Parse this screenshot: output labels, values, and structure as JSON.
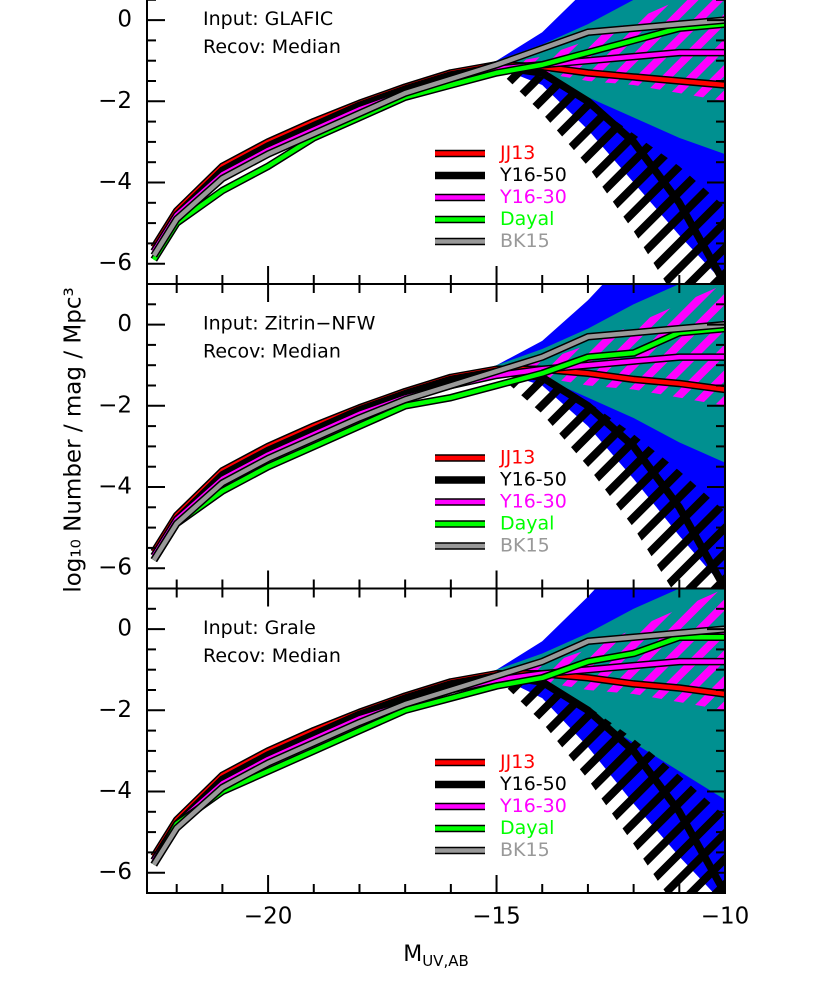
{
  "chart_data": [
    {
      "type": "line",
      "xlim": [
        -22.65,
        -10
      ],
      "ylim": [
        -6.5,
        1.0
      ],
      "xticks": [
        -20,
        -15,
        -10
      ],
      "show_xtick_labels": false,
      "yticks": [
        {
          "value": -6,
          "label": "−6"
        },
        {
          "value": -4,
          "label": "−4"
        },
        {
          "value": -2,
          "label": "−2"
        },
        0
      ],
      "annotations": [
        "Input: GLAFIC",
        "Recov: Median"
      ],
      "x": [
        -22.5,
        -22,
        -21,
        -20,
        -19,
        -18,
        -17,
        -16,
        -15,
        -14,
        -13,
        -12,
        -11,
        -10
      ],
      "bands": [
        {
          "color": "#0000ff",
          "x": [
            -16,
            -15,
            -14,
            -13,
            -12,
            -11,
            -10
          ],
          "lower": [
            -1.45,
            -1.15,
            -1.6,
            -2.7,
            -4.0,
            -5.3,
            -6.5
          ],
          "upper": [
            -1.35,
            -1.0,
            -0.3,
            0.8,
            2.0,
            3.0,
            4.0
          ]
        },
        {
          "color": "#009090",
          "x": [
            -16,
            -15,
            -14,
            -13,
            -12,
            -11,
            -10
          ],
          "lower": [
            -1.45,
            -1.15,
            -1.3,
            -1.9,
            -2.4,
            -2.9,
            -3.3
          ],
          "upper": [
            -1.35,
            -1.0,
            -0.6,
            -0.1,
            0.5,
            1.0,
            1.5
          ]
        }
      ],
      "hatches": [
        {
          "color": "#000000",
          "x": [
            -15,
            -14,
            -13,
            -12,
            -11,
            -10
          ],
          "lower": [
            -1.2,
            -2.3,
            -3.6,
            -5.2,
            -7.0,
            -8.0
          ],
          "upper": [
            -1.1,
            -1.4,
            -2.0,
            -2.8,
            -3.6,
            -4.6
          ]
        },
        {
          "color": "#ff00ff",
          "x": [
            -15,
            -14,
            -13,
            -12,
            -11,
            -10
          ],
          "lower": [
            -1.2,
            -1.3,
            -1.5,
            -1.6,
            -1.8,
            -2.0
          ],
          "upper": [
            -1.1,
            -0.9,
            -0.5,
            0.0,
            0.5,
            1.0
          ]
        }
      ],
      "series": [
        {
          "name": "JJ13",
          "color": "#ff0000",
          "values": [
            -5.6,
            -4.7,
            -3.6,
            -3.0,
            -2.5,
            -2.05,
            -1.65,
            -1.3,
            -1.1,
            -1.15,
            -1.3,
            -1.4,
            -1.5,
            -1.6
          ]
        },
        {
          "name": "Y16-50",
          "color": "#000000",
          "values": [
            -5.7,
            -4.8,
            -3.7,
            -3.1,
            -2.6,
            -2.1,
            -1.7,
            -1.35,
            -1.15,
            -1.3,
            -2.0,
            -3.0,
            -4.5,
            -6.5
          ]
        },
        {
          "name": "Y16-30",
          "color": "#ff00ff",
          "values": [
            -5.7,
            -4.8,
            -3.8,
            -3.2,
            -2.7,
            -2.2,
            -1.8,
            -1.45,
            -1.2,
            -1.1,
            -1.0,
            -0.9,
            -0.8,
            -0.8
          ]
        },
        {
          "name": "Dayal",
          "color": "#00ff00",
          "values": [
            -5.9,
            -5.0,
            -4.2,
            -3.6,
            -2.9,
            -2.4,
            -1.9,
            -1.6,
            -1.3,
            -1.1,
            -0.8,
            -0.5,
            -0.2,
            -0.1
          ]
        },
        {
          "name": "BK15",
          "color": "#999999",
          "values": [
            -5.8,
            -4.9,
            -3.9,
            -3.3,
            -2.8,
            -2.3,
            -1.8,
            -1.45,
            -1.1,
            -0.7,
            -0.3,
            -0.2,
            -0.1,
            0.0
          ]
        }
      ]
    },
    {
      "type": "line",
      "xlim": [
        -22.65,
        -10
      ],
      "ylim": [
        -6.5,
        1.0
      ],
      "xticks": [
        -20,
        -15,
        -10
      ],
      "show_xtick_labels": false,
      "yticks": [
        {
          "value": -6,
          "label": "−6"
        },
        {
          "value": -4,
          "label": "−4"
        },
        {
          "value": -2,
          "label": "−2"
        },
        0
      ],
      "ylabel": "log₁₀ Number / mag / Mpc³",
      "annotations": [
        "Input: Zitrin−NFW",
        "Recov: Median"
      ],
      "x": [
        -22.5,
        -22,
        -21,
        -20,
        -19,
        -18,
        -17,
        -16,
        -15,
        -14,
        -13,
        -12,
        -11,
        -10
      ],
      "bands": [
        {
          "color": "#0000ff",
          "x": [
            -16,
            -15,
            -14,
            -13,
            -12,
            -11,
            -10
          ],
          "lower": [
            -1.45,
            -1.15,
            -1.5,
            -2.5,
            -3.8,
            -5.2,
            -6.5
          ],
          "upper": [
            -1.35,
            -1.0,
            -0.4,
            0.6,
            1.8,
            3.0,
            4.0
          ]
        },
        {
          "color": "#009090",
          "x": [
            -16,
            -15,
            -14,
            -13,
            -12,
            -11,
            -10
          ],
          "lower": [
            -1.45,
            -1.15,
            -1.3,
            -1.8,
            -2.3,
            -2.9,
            -3.4
          ],
          "upper": [
            -1.35,
            -1.0,
            -0.6,
            -0.1,
            0.5,
            1.0,
            1.5
          ]
        }
      ],
      "hatches": [
        {
          "color": "#000000",
          "x": [
            -15,
            -14,
            -13,
            -12,
            -11,
            -10
          ],
          "lower": [
            -1.2,
            -2.2,
            -3.5,
            -5.0,
            -6.8,
            -8.0
          ],
          "upper": [
            -1.1,
            -1.4,
            -1.9,
            -2.7,
            -3.6,
            -4.6
          ]
        },
        {
          "color": "#ff00ff",
          "x": [
            -15,
            -14,
            -13,
            -12,
            -11,
            -10
          ],
          "lower": [
            -1.2,
            -1.3,
            -1.5,
            -1.6,
            -1.8,
            -2.0
          ],
          "upper": [
            -1.1,
            -0.9,
            -0.5,
            0.0,
            0.5,
            1.0
          ]
        }
      ],
      "series": [
        {
          "name": "JJ13",
          "color": "#ff0000",
          "values": [
            -5.6,
            -4.7,
            -3.6,
            -3.0,
            -2.5,
            -2.05,
            -1.65,
            -1.3,
            -1.1,
            -1.1,
            -1.2,
            -1.35,
            -1.45,
            -1.6
          ]
        },
        {
          "name": "Y16-50",
          "color": "#000000",
          "values": [
            -5.7,
            -4.8,
            -3.7,
            -3.1,
            -2.6,
            -2.1,
            -1.7,
            -1.35,
            -1.15,
            -1.3,
            -2.0,
            -3.0,
            -4.5,
            -6.5
          ]
        },
        {
          "name": "Y16-30",
          "color": "#ff00ff",
          "values": [
            -5.7,
            -4.8,
            -3.8,
            -3.2,
            -2.7,
            -2.2,
            -1.8,
            -1.5,
            -1.25,
            -1.1,
            -1.0,
            -0.9,
            -0.8,
            -0.8
          ]
        },
        {
          "name": "Dayal",
          "color": "#00ff00",
          "values": [
            -5.8,
            -4.9,
            -4.1,
            -3.5,
            -3.0,
            -2.5,
            -2.0,
            -1.8,
            -1.5,
            -1.2,
            -0.8,
            -0.7,
            -0.2,
            -0.1
          ]
        },
        {
          "name": "BK15",
          "color": "#999999",
          "values": [
            -5.8,
            -4.9,
            -3.9,
            -3.3,
            -2.8,
            -2.3,
            -1.85,
            -1.5,
            -1.15,
            -0.8,
            -0.3,
            -0.2,
            -0.1,
            0.0
          ]
        }
      ]
    },
    {
      "type": "line",
      "xlim": [
        -22.65,
        -10
      ],
      "ylim": [
        -6.5,
        1.0
      ],
      "xticks": [
        {
          "value": -20,
          "label": "−20"
        },
        {
          "value": -15,
          "label": "−15"
        },
        {
          "value": -10,
          "label": "−10"
        }
      ],
      "xlabel": "M",
      "xlabel_sub": "UV,AB",
      "yticks": [
        {
          "value": -6,
          "label": "−6"
        },
        {
          "value": -4,
          "label": "−4"
        },
        {
          "value": -2,
          "label": "−2"
        },
        0
      ],
      "annotations": [
        "Input: Grale",
        "Recov: Median"
      ],
      "x": [
        -22.5,
        -22,
        -21,
        -20,
        -19,
        -18,
        -17,
        -16,
        -15,
        -14,
        -13,
        -12,
        -11,
        -10
      ],
      "bands": [
        {
          "color": "#0000ff",
          "x": [
            -16,
            -15,
            -14,
            -13,
            -12,
            -11,
            -10
          ],
          "lower": [
            -1.45,
            -1.15,
            -1.7,
            -2.9,
            -4.3,
            -5.6,
            -6.8
          ],
          "upper": [
            -1.35,
            -1.0,
            -0.3,
            0.8,
            2.0,
            3.0,
            4.0
          ]
        },
        {
          "color": "#009090",
          "x": [
            -16,
            -15,
            -14,
            -13,
            -12,
            -11,
            -10
          ],
          "lower": [
            -1.45,
            -1.15,
            -1.4,
            -2.1,
            -2.8,
            -3.5,
            -4.2
          ],
          "upper": [
            -1.35,
            -1.0,
            -0.6,
            -0.1,
            0.5,
            1.0,
            1.5
          ]
        }
      ],
      "hatches": [
        {
          "color": "#000000",
          "x": [
            -15,
            -14,
            -13,
            -12,
            -11,
            -10
          ],
          "lower": [
            -1.2,
            -2.3,
            -3.7,
            -5.3,
            -7.0,
            -8.0
          ],
          "upper": [
            -1.1,
            -1.3,
            -1.9,
            -2.7,
            -3.6,
            -4.6
          ]
        },
        {
          "color": "#ff00ff",
          "x": [
            -15,
            -14,
            -13,
            -12,
            -11,
            -10
          ],
          "lower": [
            -1.2,
            -1.3,
            -1.5,
            -1.6,
            -1.8,
            -2.0
          ],
          "upper": [
            -1.1,
            -0.9,
            -0.5,
            0.0,
            0.5,
            1.0
          ]
        }
      ],
      "series": [
        {
          "name": "JJ13",
          "color": "#ff0000",
          "values": [
            -5.6,
            -4.7,
            -3.6,
            -3.0,
            -2.5,
            -2.05,
            -1.65,
            -1.3,
            -1.1,
            -1.1,
            -1.2,
            -1.35,
            -1.45,
            -1.6
          ]
        },
        {
          "name": "Y16-50",
          "color": "#000000",
          "values": [
            -5.7,
            -4.8,
            -3.7,
            -3.1,
            -2.6,
            -2.1,
            -1.7,
            -1.35,
            -1.15,
            -1.3,
            -2.0,
            -3.0,
            -4.5,
            -6.5
          ]
        },
        {
          "name": "Y16-30",
          "color": "#ff00ff",
          "values": [
            -5.7,
            -4.8,
            -3.8,
            -3.2,
            -2.7,
            -2.2,
            -1.85,
            -1.5,
            -1.25,
            -1.1,
            -1.0,
            -0.9,
            -0.8,
            -0.8
          ]
        },
        {
          "name": "Dayal",
          "color": "#00ff00",
          "values": [
            -5.8,
            -4.8,
            -4.0,
            -3.5,
            -3.0,
            -2.5,
            -2.0,
            -1.7,
            -1.4,
            -1.2,
            -0.8,
            -0.6,
            -0.2,
            -0.2
          ]
        },
        {
          "name": "BK15",
          "color": "#999999",
          "values": [
            -5.8,
            -4.9,
            -3.9,
            -3.3,
            -2.8,
            -2.3,
            -1.85,
            -1.5,
            -1.15,
            -0.8,
            -0.3,
            -0.2,
            -0.1,
            0.0
          ]
        }
      ]
    }
  ]
}
